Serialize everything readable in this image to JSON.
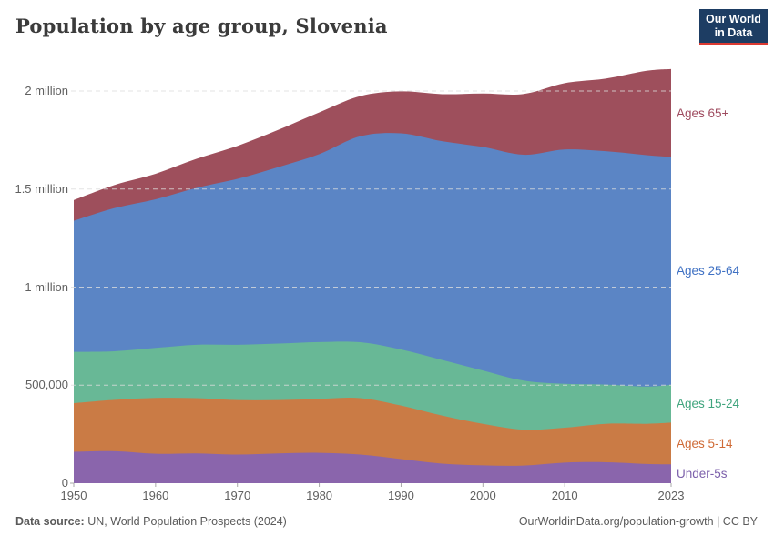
{
  "logo": {
    "line1": "Our World",
    "line2": "in Data",
    "bg_color": "#1d3d63",
    "accent_color": "#dc3a32",
    "text_color": "#ffffff"
  },
  "footer": {
    "source_label": "Data source:",
    "source_value": "UN, World Population Prospects (2024)",
    "credit": "OurWorldinData.org/population-growth | CC BY"
  },
  "chart_data": {
    "type": "area",
    "stacked": true,
    "title": "Population by age group, Slovenia",
    "xlabel": "",
    "ylabel": "",
    "grid": "horizontal-dashed",
    "legend_position": "right-inline",
    "xlim": [
      1950,
      2023
    ],
    "ylim": [
      0,
      2150000
    ],
    "x": [
      1950,
      1955,
      1960,
      1965,
      1970,
      1975,
      1980,
      1985,
      1990,
      1995,
      2000,
      2005,
      2010,
      2015,
      2020,
      2023
    ],
    "x_ticks": [
      {
        "v": 1950,
        "label": "1950"
      },
      {
        "v": 1960,
        "label": "1960"
      },
      {
        "v": 1970,
        "label": "1970"
      },
      {
        "v": 1980,
        "label": "1980"
      },
      {
        "v": 1990,
        "label": "1990"
      },
      {
        "v": 2000,
        "label": "2000"
      },
      {
        "v": 2010,
        "label": "2010"
      },
      {
        "v": 2023,
        "label": "2023"
      }
    ],
    "y_ticks": [
      {
        "v": 0,
        "label": "0"
      },
      {
        "v": 500000,
        "label": "500,000"
      },
      {
        "v": 1000000,
        "label": "1 million"
      },
      {
        "v": 1500000,
        "label": "1.5 million"
      },
      {
        "v": 2000000,
        "label": "2 million"
      }
    ],
    "series": [
      {
        "name": "Under-5s",
        "color": "#8a65ac",
        "label_color": "#7c60ab",
        "values": [
          160000,
          163000,
          150000,
          152000,
          146000,
          152000,
          155000,
          146000,
          123000,
          100000,
          91000,
          90000,
          105000,
          107000,
          98000,
          96000
        ]
      },
      {
        "name": "Ages 5-14",
        "color": "#ca7b45",
        "label_color": "#cf6a35",
        "values": [
          248000,
          262000,
          285000,
          282000,
          278000,
          272000,
          275000,
          288000,
          273000,
          245000,
          212000,
          183000,
          178000,
          196000,
          205000,
          213000
        ]
      },
      {
        "name": "Ages 15-24",
        "color": "#68b896",
        "label_color": "#3fa47d",
        "values": [
          262000,
          248000,
          255000,
          272000,
          282000,
          288000,
          290000,
          285000,
          286000,
          284000,
          272000,
          250000,
          224000,
          200000,
          190000,
          193000
        ]
      },
      {
        "name": "Ages 25-64",
        "color": "#5b85c5",
        "label_color": "#3e70c3",
        "values": [
          668000,
          730000,
          758000,
          800000,
          846000,
          900000,
          958000,
          1050000,
          1102000,
          1115000,
          1140000,
          1152000,
          1195000,
          1190000,
          1180000,
          1162000
        ]
      },
      {
        "name": "Ages 65+",
        "color": "#9e4f5c",
        "label_color": "#9e4a5e",
        "values": [
          106000,
          118000,
          130000,
          148000,
          168000,
          190000,
          213000,
          205000,
          214000,
          240000,
          272000,
          310000,
          338000,
          370000,
          430000,
          448000
        ]
      }
    ]
  }
}
